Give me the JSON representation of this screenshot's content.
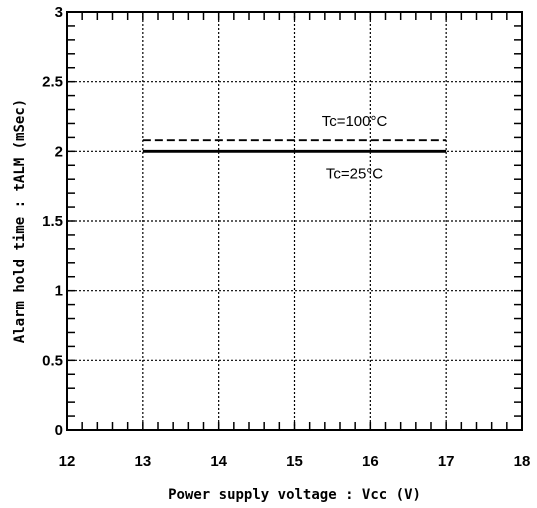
{
  "chart_data": {
    "type": "line",
    "title": "",
    "xlabel": "Power supply voltage : Vcc (V)",
    "ylabel": "Alarm hold time : tALM (mSec)",
    "xlim": [
      12,
      18
    ],
    "ylim": [
      0,
      3
    ],
    "x_ticks": [
      12,
      13,
      14,
      15,
      16,
      17,
      18
    ],
    "x_tick_labels": [
      "12",
      "13",
      "14",
      "15",
      "16",
      "17",
      "18"
    ],
    "y_ticks": [
      0,
      0.5,
      1,
      1.5,
      2,
      2.5,
      3
    ],
    "y_tick_labels": [
      "0",
      "0.5",
      "1",
      "1.5",
      "2",
      "2.5",
      "3"
    ],
    "grid": true,
    "grid_style": "dotted",
    "series": [
      {
        "name": "Tc=100°C",
        "style": "dashed",
        "color": "#000000",
        "x": [
          13,
          17
        ],
        "y": [
          2.08,
          2.08
        ]
      },
      {
        "name": "Tc=25°C",
        "style": "solid",
        "color": "#000000",
        "x": [
          13,
          17
        ],
        "y": [
          2.0,
          2.0
        ]
      }
    ]
  }
}
